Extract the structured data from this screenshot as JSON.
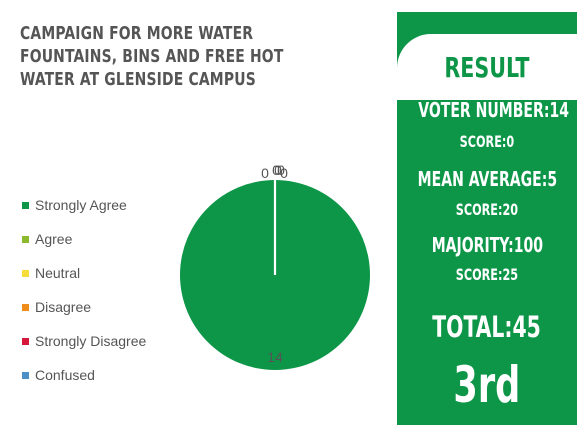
{
  "title": "CAMPAIGN FOR MORE WATER FOUNTAINS, BINS AND FREE HOT WATER AT GLENSIDE CAMPUS",
  "legend": [
    {
      "label": "Strongly Agree",
      "color": "#0d9648"
    },
    {
      "label": "Agree",
      "color": "#8db92e"
    },
    {
      "label": "Neutral",
      "color": "#f6dc3a"
    },
    {
      "label": "Disagree",
      "color": "#f08c1a"
    },
    {
      "label": "Strongly Disagree",
      "color": "#d6163b"
    },
    {
      "label": "Confused",
      "color": "#4c90c6"
    }
  ],
  "chart_data": {
    "type": "pie",
    "categories": [
      "Strongly Agree",
      "Agree",
      "Neutral",
      "Disagree",
      "Strongly Disagree",
      "Confused"
    ],
    "values": [
      14,
      0,
      0,
      0,
      0,
      0
    ],
    "data_labels": [
      "14",
      "0",
      "0",
      "0",
      "0",
      "0"
    ],
    "legend_position": "left"
  },
  "result": {
    "title": "RESULT",
    "voter_number": "VOTER NUMBER:14",
    "score1": "SCORE:0",
    "mean_average": "MEAN AVERAGE:5",
    "score2": "SCORE:20",
    "majority": "MAJORITY:100",
    "score3": "SCORE:25",
    "total": "TOTAL:45",
    "rank": "3rd"
  }
}
